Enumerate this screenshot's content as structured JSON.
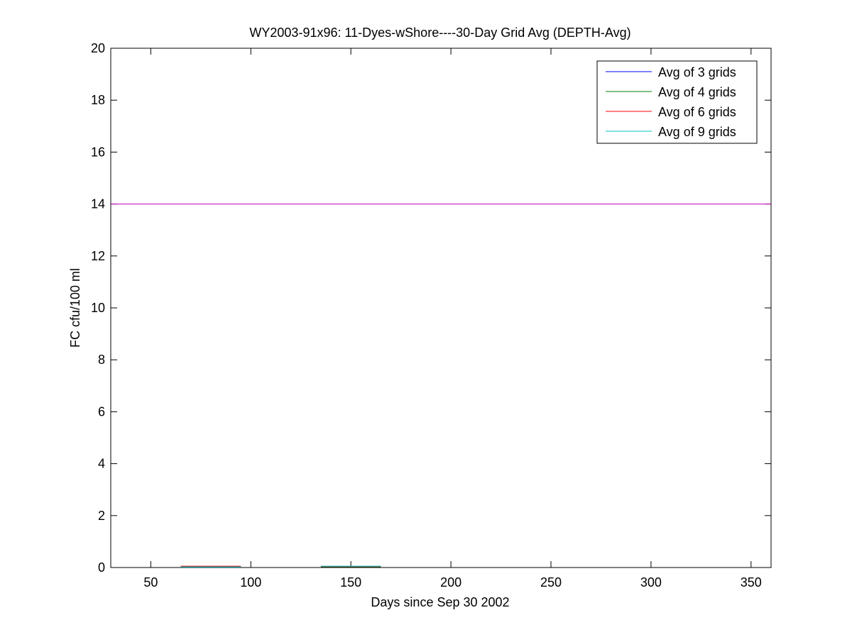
{
  "chart_data": {
    "type": "line",
    "title": "WY2003-91x96: 11-Dyes-wShore----30-Day Grid Avg (DEPTH-Avg)",
    "xlabel": "Days since Sep 30 2002",
    "ylabel": "FC cfu/100 ml",
    "xlim": [
      30,
      360
    ],
    "ylim": [
      0,
      20
    ],
    "xticks": [
      50,
      100,
      150,
      200,
      250,
      300,
      350
    ],
    "yticks": [
      0,
      2,
      4,
      6,
      8,
      10,
      12,
      14,
      16,
      18,
      20
    ],
    "grid": false,
    "legend_position": "top-right",
    "series": [
      {
        "name": "Avg of 3 grids",
        "color": "#0000ff",
        "segments": [
          [
            [
              65,
              0.03
            ],
            [
              95,
              0.03
            ]
          ],
          [
            [
              135,
              0.03
            ],
            [
              165,
              0.03
            ]
          ]
        ]
      },
      {
        "name": "Avg of 4 grids",
        "color": "#008000",
        "segments": [
          [
            [
              65,
              0.03
            ],
            [
              95,
              0.03
            ]
          ],
          [
            [
              135,
              0.03
            ],
            [
              165,
              0.03
            ]
          ]
        ]
      },
      {
        "name": "Avg of 6 grids",
        "color": "#ff0000",
        "segments": [
          [
            [
              65,
              0.05
            ],
            [
              95,
              0.05
            ]
          ],
          [
            [
              135,
              0.04
            ],
            [
              165,
              0.04
            ]
          ]
        ]
      },
      {
        "name": "Avg of 9 grids",
        "color": "#00bfbf",
        "segments": [
          [
            [
              65,
              0.02
            ],
            [
              95,
              0.02
            ]
          ],
          [
            [
              135,
              0.05
            ],
            [
              165,
              0.05
            ]
          ]
        ]
      }
    ],
    "reference_line": {
      "y": 14,
      "color": "#bf00bf"
    }
  }
}
